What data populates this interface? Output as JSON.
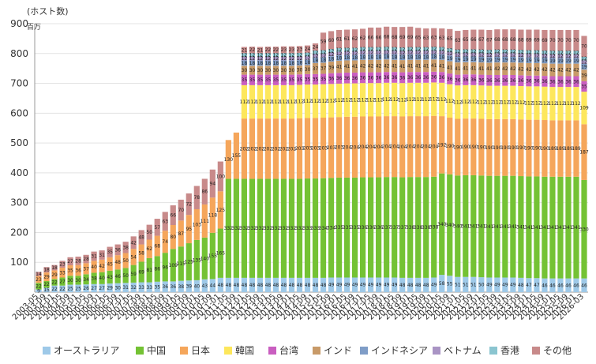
{
  "chart_data": {
    "type": "bar",
    "stacked": true,
    "ylabel_unit_top": "(ホスト数)",
    "ylabel_unit_side": "百万",
    "ylim": [
      0,
      900
    ],
    "yticks": [
      100,
      200,
      300,
      400,
      500,
      600,
      700,
      800,
      900
    ],
    "categories": [
      "2003-05",
      "2003-09",
      "2004-01",
      "2004-05",
      "2004-09",
      "2005-01",
      "2005-05",
      "2005-09",
      "2006-01",
      "2006-05",
      "2006-09",
      "2007-01",
      "2007-05",
      "2007-09",
      "2008-01",
      "2008-05",
      "2008-09",
      "2009-01",
      "2009-05",
      "2009-09",
      "2010-01",
      "2010-05",
      "2010-09",
      "2011-01",
      "2011-05",
      "2011-09",
      "2012-01",
      "2012-05",
      "2012-09",
      "2013-01",
      "2013-05",
      "2013-09",
      "2014-01",
      "2014-05",
      "2014-09",
      "2015-01",
      "2015-05",
      "2015-09",
      "2016-01",
      "2016-05",
      "2016-09",
      "2017-01",
      "2017-05",
      "2017-09",
      "2018-01",
      "2018-05",
      "2018-09",
      "2019-01",
      "2019-05",
      "2019-09",
      "2020-01",
      "2020-05",
      "2020-09",
      "2021-01",
      "2021-05",
      "2021-09",
      "2022-01",
      "2022-05",
      "2022-09",
      "2023-01",
      "2023-05",
      "2023-09",
      "2024-01",
      "2024-05",
      "2024-09",
      "2025-01",
      "2025-05",
      "2025-09",
      "2026-01",
      "2026-03"
    ],
    "xtick_labels": [
      "2003-05",
      "2003-09",
      "2004-01",
      "2004-05",
      "2004-09",
      "2005-01",
      "2005-05",
      "2005-09",
      "2006-01",
      "2006-05",
      "2006-09",
      "2007-01",
      "2007-05",
      "2007-09",
      "2008-01",
      "2008-05",
      "2008-09",
      "2009-01",
      "2009-05",
      "2009-09",
      "2010-01",
      "2010-05",
      "2010-09",
      "2011-01",
      "2011-05",
      "2011-09",
      "2012-01",
      "2012-05",
      "2012-09",
      "2013-01",
      "2013-05",
      "2013-09",
      "2014-01",
      "2014-05",
      "2014-09",
      "2015-01",
      "2015-05",
      "2015-09",
      "2016-01",
      "2016-05",
      "2016-09",
      "2017-01",
      "2017-05",
      "2017-09",
      "2018-01",
      "2018-05",
      "2018-09",
      "2019-01",
      "2019-05",
      "2019-09",
      "2020-01",
      "2020-05",
      "2020-09",
      "2021-01",
      "2021-05",
      "2021-09",
      "2022-01",
      "2022-05",
      "2022-09",
      "2023-01",
      "2023-05",
      "2023-09",
      "2024-01",
      "2024-05",
      "2024-09",
      "2025-01",
      "2025-05",
      "2025-09",
      "2026-01",
      "2026-03"
    ],
    "series": [
      {
        "name": "オーストラリア",
        "color": "#9ec9e8",
        "values": [
          9,
          15,
          22,
          22,
          25,
          25,
          26,
          27,
          27,
          29,
          30,
          31,
          32,
          33,
          33,
          35,
          36,
          36,
          38,
          39,
          40,
          43,
          44,
          48,
          48,
          48,
          48,
          48,
          48,
          48,
          48,
          48,
          48,
          48,
          48,
          48,
          48,
          49,
          49,
          49,
          49,
          49,
          49,
          49,
          49,
          49,
          48,
          48,
          48,
          48,
          49,
          58,
          55,
          51,
          51,
          51,
          50,
          49,
          49,
          49,
          49,
          48,
          47,
          47,
          46,
          46,
          46,
          46,
          46,
          46
        ]
      },
      {
        "name": "中国",
        "color": "#74c234",
        "values": [
          22,
          22,
          22,
          27,
          30,
          30,
          34,
          38,
          40,
          43,
          46,
          50,
          59,
          69,
          81,
          86,
          96,
          109,
          115,
          125,
          135,
          140,
          155,
          165,
          332,
          332,
          332,
          332,
          332,
          332,
          332,
          332,
          332,
          332,
          333,
          333,
          334,
          334,
          335,
          335,
          335,
          336,
          336,
          336,
          337,
          337,
          337,
          338,
          338,
          338,
          338,
          340,
          340,
          340,
          341,
          341,
          341,
          341,
          341,
          341,
          341,
          341,
          341,
          341,
          341,
          341,
          341,
          341,
          341,
          330
        ]
      },
      {
        "name": "日本",
        "color": "#f5a65b",
        "values": [
          23,
          29,
          29,
          33,
          35,
          36,
          37,
          40,
          42,
          45,
          48,
          50,
          54,
          58,
          62,
          68,
          74,
          80,
          87,
          95,
          103,
          111,
          118,
          125,
          130,
          155,
          202,
          202,
          202,
          202,
          202,
          202,
          202,
          203,
          203,
          203,
          203,
          203,
          203,
          204,
          204,
          204,
          204,
          204,
          204,
          204,
          204,
          204,
          204,
          204,
          204,
          192,
          190,
          190,
          190,
          190,
          190,
          190,
          190,
          190,
          190,
          190,
          190,
          190,
          190,
          189,
          189,
          189,
          189,
          187
        ]
      },
      {
        "name": "韓国",
        "color": "#fde75c",
        "values": [
          0,
          0,
          0,
          0,
          0,
          0,
          0,
          0,
          0,
          0,
          0,
          0,
          0,
          0,
          0,
          0,
          0,
          0,
          0,
          0,
          0,
          0,
          0,
          0,
          0,
          0,
          112,
          112,
          112,
          112,
          112,
          112,
          112,
          112,
          112,
          112,
          112,
          112,
          112,
          112,
          112,
          112,
          112,
          112,
          112,
          112,
          112,
          112,
          112,
          112,
          112,
          112,
          112,
          112,
          112,
          112,
          112,
          112,
          112,
          112,
          112,
          112,
          112,
          112,
          112,
          112,
          112,
          112,
          112,
          109
        ]
      },
      {
        "name": "台湾",
        "color": "#c95ec0",
        "values": [
          0,
          0,
          0,
          0,
          0,
          0,
          0,
          0,
          0,
          0,
          0,
          0,
          0,
          0,
          0,
          0,
          0,
          0,
          0,
          0,
          0,
          0,
          0,
          0,
          0,
          0,
          35,
          35,
          35,
          35,
          35,
          35,
          35,
          35,
          35,
          35,
          35,
          36,
          36,
          36,
          36,
          36,
          36,
          36,
          36,
          36,
          36,
          36,
          36,
          36,
          36,
          36,
          36,
          36,
          36,
          36,
          36,
          36,
          36,
          36,
          36,
          36,
          36,
          36,
          36,
          36,
          36,
          36,
          36,
          35
        ]
      },
      {
        "name": "インド",
        "color": "#c89a68",
        "values": [
          0,
          0,
          0,
          0,
          0,
          0,
          0,
          0,
          0,
          0,
          0,
          0,
          0,
          0,
          0,
          0,
          0,
          0,
          0,
          0,
          0,
          0,
          0,
          0,
          0,
          0,
          30,
          30,
          30,
          30,
          30,
          30,
          30,
          30,
          30,
          37,
          37,
          39,
          41,
          41,
          41,
          42,
          42,
          42,
          42,
          41,
          41,
          41,
          41,
          41,
          41,
          41,
          41,
          41,
          41,
          41,
          41,
          41,
          42,
          42,
          42,
          42,
          42,
          42,
          42,
          42,
          42,
          42,
          42,
          39
        ]
      },
      {
        "name": "インドネシア",
        "color": "#7f9dc7",
        "values": [
          0,
          0,
          0,
          0,
          0,
          0,
          0,
          0,
          0,
          0,
          0,
          0,
          0,
          0,
          0,
          0,
          0,
          0,
          0,
          0,
          0,
          0,
          0,
          0,
          0,
          0,
          18,
          18,
          18,
          18,
          18,
          18,
          18,
          18,
          18,
          18,
          18,
          18,
          18,
          18,
          18,
          18,
          18,
          18,
          18,
          18,
          18,
          18,
          18,
          18,
          18,
          18,
          19,
          19,
          19,
          19,
          19,
          19,
          19,
          19,
          19,
          19,
          19,
          19,
          19,
          19,
          19,
          19,
          19,
          19
        ]
      },
      {
        "name": "ベトナム",
        "color": "#a994c4",
        "values": [
          0,
          0,
          0,
          0,
          0,
          0,
          0,
          0,
          0,
          0,
          0,
          0,
          0,
          0,
          0,
          0,
          0,
          0,
          0,
          0,
          0,
          0,
          0,
          0,
          0,
          0,
          12,
          12,
          12,
          12,
          12,
          12,
          12,
          12,
          12,
          12,
          12,
          12,
          12,
          12,
          12,
          12,
          12,
          12,
          12,
          12,
          12,
          12,
          12,
          12,
          12,
          12,
          12,
          12,
          12,
          12,
          12,
          12,
          12,
          12,
          12,
          12,
          12,
          12,
          12,
          12,
          12,
          12,
          12,
          12
        ]
      },
      {
        "name": "香港",
        "color": "#8bc5d0",
        "values": [
          0,
          0,
          0,
          0,
          0,
          0,
          0,
          0,
          0,
          0,
          0,
          0,
          0,
          0,
          0,
          0,
          0,
          0,
          0,
          0,
          0,
          0,
          0,
          0,
          0,
          0,
          12,
          12,
          12,
          12,
          12,
          12,
          12,
          12,
          12,
          12,
          12,
          12,
          12,
          12,
          12,
          12,
          12,
          12,
          12,
          12,
          12,
          12,
          12,
          12,
          12,
          12,
          12,
          12,
          12,
          12,
          12,
          12,
          12,
          12,
          12,
          12,
          12,
          12,
          12,
          12,
          12,
          12,
          12,
          12
        ]
      },
      {
        "name": "その他",
        "color": "#c88a8a",
        "values": [
          14,
          18,
          18,
          23,
          27,
          28,
          28,
          31,
          31,
          35,
          36,
          38,
          42,
          48,
          50,
          57,
          63,
          66,
          70,
          72,
          78,
          86,
          94,
          100,
          0,
          0,
          21,
          22,
          21,
          22,
          22,
          23,
          23,
          23,
          24,
          24,
          59,
          60,
          61,
          61,
          62,
          62,
          66,
          66,
          68,
          68,
          69,
          69,
          65,
          63,
          63,
          63,
          65,
          63,
          65,
          66,
          67,
          67,
          68,
          68,
          68,
          68,
          69,
          69,
          69,
          70,
          70,
          70,
          70,
          70
        ]
      }
    ],
    "label_threshold": 6
  }
}
